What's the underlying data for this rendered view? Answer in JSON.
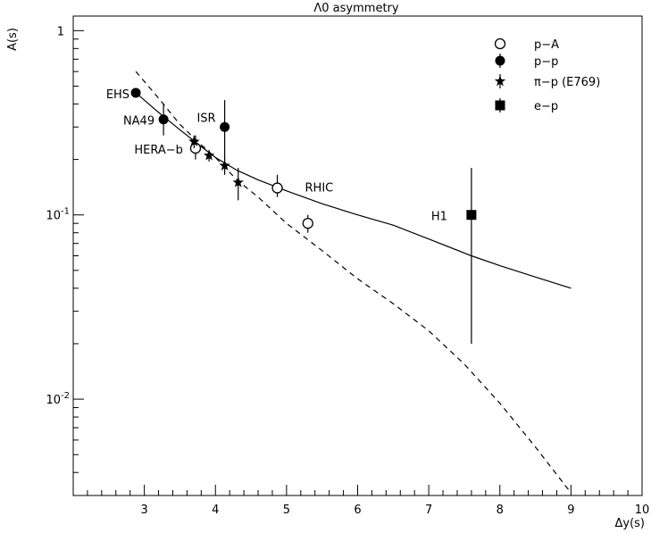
{
  "chart_data": {
    "type": "scatter",
    "title": "Λ0 asymmetry",
    "xlabel": "Δy(s)",
    "ylabel": "A(s)",
    "xlim": [
      2,
      10
    ],
    "ylim": [
      0.003,
      1.2
    ],
    "yscale": "log",
    "grid": false,
    "legend_position": "top-right",
    "x_ticks": [
      {
        "value": 3,
        "label": "3"
      },
      {
        "value": 4,
        "label": "4"
      },
      {
        "value": 5,
        "label": "5"
      },
      {
        "value": 6,
        "label": "6"
      },
      {
        "value": 7,
        "label": "7"
      },
      {
        "value": 8,
        "label": "8"
      },
      {
        "value": 9,
        "label": "9"
      },
      {
        "value": 10,
        "label": "10"
      }
    ],
    "y_ticks": [
      {
        "value": 1,
        "label": "1"
      },
      {
        "value": 0.1,
        "label": "10",
        "exp": "-1"
      },
      {
        "value": 0.01,
        "label": "10",
        "exp": "-2"
      }
    ],
    "series": [
      {
        "name": "p−A",
        "marker": "open-circle",
        "points": [
          {
            "x": 3.72,
            "y": 0.23,
            "yerr_low": 0.2,
            "yerr_high": 0.27
          },
          {
            "x": 4.87,
            "y": 0.14,
            "yerr_low": 0.125,
            "yerr_high": 0.165
          },
          {
            "x": 5.3,
            "y": 0.09,
            "yerr_low": 0.08,
            "yerr_high": 0.1
          }
        ]
      },
      {
        "name": "p−p",
        "marker": "filled-circle",
        "points": [
          {
            "x": 2.88,
            "y": 0.46,
            "yerr_low": 0.44,
            "yerr_high": 0.48
          },
          {
            "x": 3.27,
            "y": 0.33,
            "yerr_low": 0.27,
            "yerr_high": 0.4
          },
          {
            "x": 4.13,
            "y": 0.3,
            "yerr_low": 0.2,
            "yerr_high": 0.42
          }
        ]
      },
      {
        "name": "π−p (E769)",
        "marker": "star",
        "points": [
          {
            "x": 3.7,
            "y": 0.25,
            "yerr_low": 0.23,
            "yerr_high": 0.27
          },
          {
            "x": 3.91,
            "y": 0.21,
            "yerr_low": 0.195,
            "yerr_high": 0.225
          },
          {
            "x": 4.13,
            "y": 0.185,
            "yerr_low": 0.165,
            "yerr_high": 0.205
          },
          {
            "x": 4.32,
            "y": 0.15,
            "yerr_low": 0.12,
            "yerr_high": 0.18
          }
        ]
      },
      {
        "name": "e−p",
        "marker": "filled-square",
        "points": [
          {
            "x": 7.6,
            "y": 0.1,
            "yerr_low": 0.02,
            "yerr_high": 0.18
          }
        ]
      }
    ],
    "curves": [
      {
        "style": "solid",
        "points": [
          [
            2.88,
            0.46
          ],
          [
            3.2,
            0.36
          ],
          [
            3.5,
            0.29
          ],
          [
            3.8,
            0.235
          ],
          [
            4.0,
            0.205
          ],
          [
            4.3,
            0.175
          ],
          [
            4.6,
            0.155
          ],
          [
            5.0,
            0.135
          ],
          [
            5.5,
            0.115
          ],
          [
            6.0,
            0.1
          ],
          [
            6.5,
            0.088
          ],
          [
            7.0,
            0.074
          ],
          [
            7.6,
            0.06
          ],
          [
            8.0,
            0.053
          ],
          [
            8.5,
            0.046
          ],
          [
            9.0,
            0.04
          ]
        ]
      },
      {
        "style": "dashed",
        "points": [
          [
            2.88,
            0.6
          ],
          [
            3.2,
            0.43
          ],
          [
            3.5,
            0.31
          ],
          [
            3.8,
            0.24
          ],
          [
            4.0,
            0.205
          ],
          [
            4.3,
            0.155
          ],
          [
            4.6,
            0.125
          ],
          [
            5.0,
            0.09
          ],
          [
            5.5,
            0.064
          ],
          [
            6.0,
            0.045
          ],
          [
            6.5,
            0.033
          ],
          [
            7.0,
            0.0235
          ],
          [
            7.5,
            0.0155
          ],
          [
            8.0,
            0.0095
          ],
          [
            8.5,
            0.0055
          ],
          [
            9.0,
            0.0031
          ]
        ]
      }
    ],
    "annotations": [
      {
        "text": "EHS",
        "x": 2.88,
        "y": 0.46
      },
      {
        "text": "NA49",
        "x": 3.27,
        "y": 0.33
      },
      {
        "text": "ISR",
        "x": 4.13,
        "y": 0.3
      },
      {
        "text": "HERA−b",
        "x": 3.72,
        "y": 0.23
      },
      {
        "text": "RHIC",
        "x": 4.87,
        "y": 0.14
      },
      {
        "text": "H1",
        "x": 7.6,
        "y": 0.1
      }
    ]
  }
}
